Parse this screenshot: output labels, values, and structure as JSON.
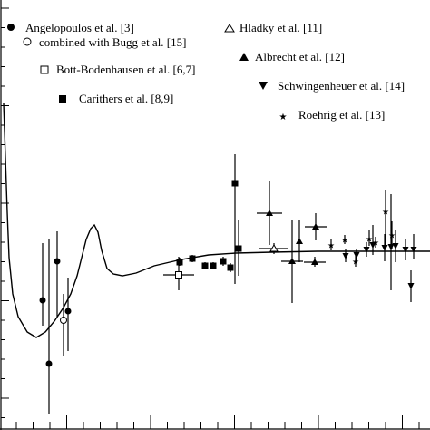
{
  "chart_data": {
    "type": "scatter",
    "title": "",
    "xlabel": "",
    "ylabel": "",
    "grid": false,
    "legend_position": "top",
    "xlim": [
      0,
      474
    ],
    "ylim": [
      0,
      474
    ],
    "colors": {
      "ink": "#000000",
      "background": "#ffffff"
    },
    "legend": [
      {
        "label": "Angelopoulos et al. [3]",
        "marker": "filled-circle"
      },
      {
        "label": "combined with Bugg et al. [15]",
        "marker": "open-circle"
      },
      {
        "label": "Bott-Bodenhausen et al. [6,7]",
        "marker": "open-square"
      },
      {
        "label": "Carithers et al. [8,9]",
        "marker": "filled-square"
      },
      {
        "label": "Hladky et al. [11]",
        "marker": "open-triangle-up"
      },
      {
        "label": "Albrecht et al. [12]",
        "marker": "filled-triangle-up"
      },
      {
        "label": "Schwingenheuer et al. [14]",
        "marker": "filled-triangle-down"
      },
      {
        "label": "Roehrig et al. [13]",
        "marker": "star"
      }
    ],
    "series": [
      {
        "name": "Angelopoulos et al. [3]",
        "marker": "filled-circle",
        "points": [
          {
            "x": 47,
            "y": 143,
            "ylo": 115,
            "yhi": 206
          },
          {
            "x": 54,
            "y": 73,
            "ylo": 18,
            "yhi": 211
          },
          {
            "x": 63,
            "y": 186,
            "ylo": 125,
            "yhi": 219
          },
          {
            "x": 75,
            "y": 131,
            "ylo": 87,
            "yhi": 168
          }
        ]
      },
      {
        "name": "combined with Bugg et al. [15]",
        "marker": "open-circle",
        "points": [
          {
            "x": 70,
            "y": 121,
            "ylo": 82,
            "yhi": 150
          }
        ]
      },
      {
        "name": "Bott-Bodenhausen et al. [6,7]",
        "marker": "open-square",
        "points": [
          {
            "x": 197,
            "y": 171,
            "xlo": 180,
            "xhi": 214,
            "ylo": 154,
            "yhi": 191
          }
        ]
      },
      {
        "name": "Carithers et al. [8,9]",
        "marker": "filled-square",
        "points": [
          {
            "x": 198,
            "y": 185,
            "ylo": 181,
            "yhi": 190
          },
          {
            "x": 212,
            "y": 189,
            "ylo": 185,
            "yhi": 193
          },
          {
            "x": 226,
            "y": 181,
            "ylo": 177,
            "yhi": 185
          },
          {
            "x": 235,
            "y": 181,
            "ylo": 177,
            "yhi": 185
          },
          {
            "x": 246,
            "y": 186,
            "ylo": 181,
            "yhi": 191
          },
          {
            "x": 254,
            "y": 179,
            "ylo": 174,
            "yhi": 184
          },
          {
            "x": 259,
            "y": 272,
            "ylo": 161,
            "yhi": 304
          },
          {
            "x": 263,
            "y": 200,
            "ylo": 170,
            "yhi": 232
          }
        ]
      },
      {
        "name": "Hladky et al. [11]",
        "marker": "open-triangle-up",
        "points": [
          {
            "x": 302,
            "y": 200,
            "xlo": 286,
            "xhi": 318,
            "ylo": 194,
            "yhi": 206
          }
        ]
      },
      {
        "name": "Albrecht et al. [12]",
        "marker": "filled-triangle-up",
        "points": [
          {
            "x": 297,
            "y": 239,
            "xlo": 283,
            "xhi": 311,
            "ylo": 204,
            "yhi": 274
          },
          {
            "x": 322,
            "y": 186,
            "xlo": 310,
            "xhi": 334,
            "ylo": 140,
            "yhi": 231
          },
          {
            "x": 330,
            "y": 208,
            "ylo": 185,
            "yhi": 231
          },
          {
            "x": 348,
            "y": 224,
            "xlo": 336,
            "xhi": 360,
            "ylo": 209,
            "yhi": 239
          },
          {
            "x": 347,
            "y": 185,
            "xlo": 335,
            "xhi": 359,
            "ylo": 180,
            "yhi": 191
          }
        ]
      },
      {
        "name": "Schwingenheuer et al. [14]",
        "marker": "filled-triangle-down",
        "points": [
          {
            "x": 381,
            "y": 192,
            "ylo": 185,
            "yhi": 199
          },
          {
            "x": 393,
            "y": 193,
            "ylo": 186,
            "yhi": 200
          },
          {
            "x": 404,
            "y": 199,
            "ylo": 191,
            "yhi": 207
          },
          {
            "x": 411,
            "y": 204,
            "ylo": 193,
            "yhi": 226
          },
          {
            "x": 424,
            "y": 201,
            "ylo": 186,
            "yhi": 216
          },
          {
            "x": 436,
            "y": 203,
            "ylo": 185,
            "yhi": 220
          },
          {
            "x": 447,
            "y": 199,
            "ylo": 187,
            "yhi": 210
          },
          {
            "x": 456,
            "y": 199,
            "ylo": 189,
            "yhi": 216
          },
          {
            "x": 453,
            "y": 159,
            "ylo": 141,
            "yhi": 176
          },
          {
            "x": 431,
            "y": 202,
            "ylo": 154,
            "yhi": 260
          }
        ]
      },
      {
        "name": "Roehrig et al. [13]",
        "marker": "star",
        "points": [
          {
            "x": 365,
            "y": 204,
            "ylo": 198,
            "yhi": 210
          },
          {
            "x": 380,
            "y": 210,
            "ylo": 205,
            "yhi": 215
          },
          {
            "x": 392,
            "y": 186,
            "ylo": 180,
            "yhi": 192
          },
          {
            "x": 407,
            "y": 211,
            "ylo": 203,
            "yhi": 220
          },
          {
            "x": 414,
            "y": 207,
            "ylo": 201,
            "yhi": 213
          },
          {
            "x": 425,
            "y": 241,
            "ylo": 201,
            "yhi": 265
          },
          {
            "x": 432,
            "y": 215,
            "ylo": 199,
            "yhi": 230
          }
        ]
      }
    ],
    "curve": {
      "x": [
        4,
        6,
        8,
        10,
        14,
        20,
        30,
        40,
        50,
        60,
        70,
        78,
        85,
        90,
        95,
        100,
        104,
        108,
        112,
        118,
        125,
        135,
        150,
        170,
        200,
        230,
        260,
        300,
        350,
        400,
        450,
        474
      ],
      "y": [
        360,
        300,
        240,
        190,
        150,
        125,
        108,
        102,
        108,
        120,
        135,
        150,
        170,
        190,
        210,
        222,
        226,
        218,
        198,
        178,
        172,
        170,
        173,
        181,
        188,
        193,
        195,
        196,
        197,
        197,
        197,
        197
      ]
    }
  }
}
